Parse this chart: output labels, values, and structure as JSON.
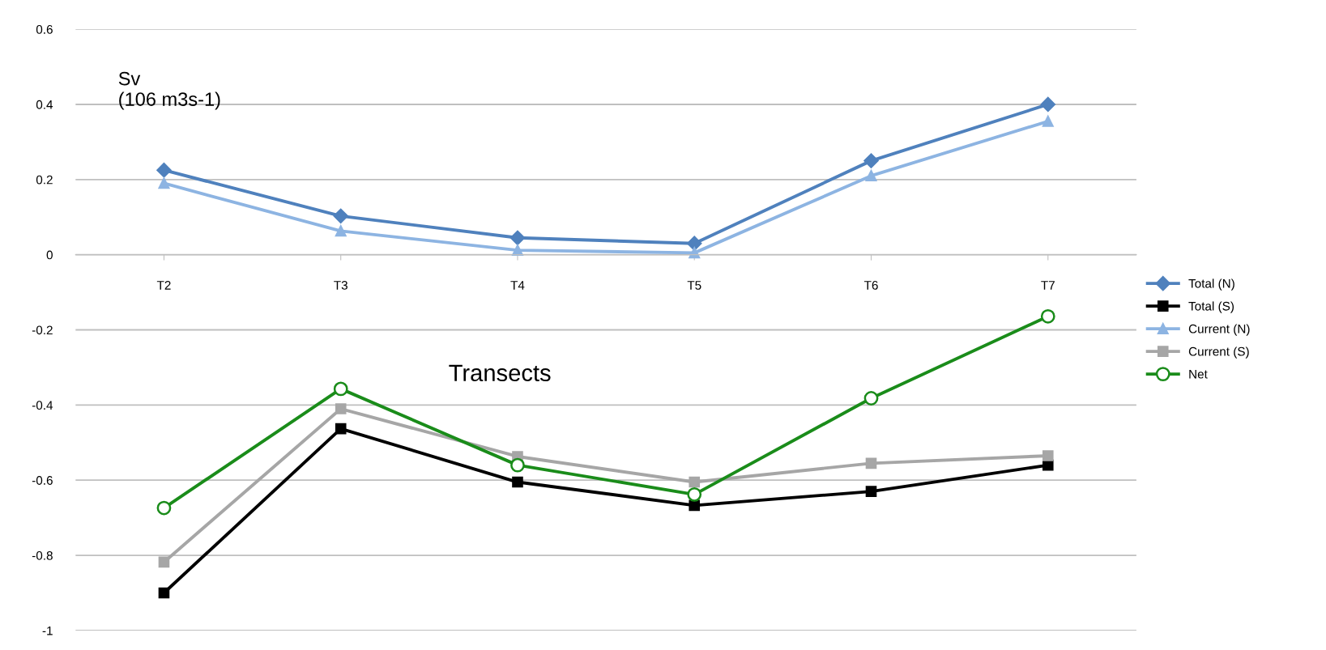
{
  "chart_data": {
    "type": "line",
    "categories": [
      "T2",
      "T3",
      "T4",
      "T5",
      "T6",
      "T7"
    ],
    "series": [
      {
        "name": "Total (N)",
        "color": "#4f81bd",
        "marker": "diamond",
        "values": [
          0.225,
          0.103,
          0.045,
          0.03,
          0.25,
          0.4
        ]
      },
      {
        "name": "Total (S)",
        "color": "#000000",
        "marker": "square",
        "values": [
          -0.9,
          -0.463,
          -0.605,
          -0.667,
          -0.63,
          -0.56
        ]
      },
      {
        "name": "Current (N)",
        "color": "#8db4e2",
        "marker": "triangle",
        "values": [
          0.19,
          0.063,
          0.012,
          0.005,
          0.21,
          0.355
        ]
      },
      {
        "name": "Current (S)",
        "color": "#a6a6a6",
        "marker": "square",
        "values": [
          -0.818,
          -0.41,
          -0.537,
          -0.605,
          -0.555,
          -0.535
        ]
      },
      {
        "name": "Net",
        "color": "#1a8c1a",
        "marker": "circle",
        "values": [
          -0.674,
          -0.357,
          -0.56,
          -0.638,
          -0.382,
          -0.164
        ]
      }
    ],
    "ylim": [
      -1,
      0.6
    ],
    "yticks": [
      -1,
      -0.8,
      -0.6,
      -0.4,
      -0.2,
      0,
      0.2,
      0.4,
      0.6
    ],
    "grid": "y",
    "legend": "right",
    "annotations": [
      "Sv\n(106 m3s-1)",
      "Transects"
    ]
  }
}
